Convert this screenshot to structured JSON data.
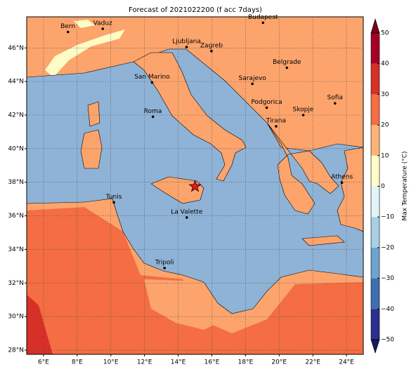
{
  "map": {
    "title": "Forecast of 2021022200 (f acc 7days)",
    "xlim": [
      5,
      25
    ],
    "ylim": [
      27.75,
      47.85
    ],
    "xticks": [
      {
        "value": 6,
        "label": "6°E"
      },
      {
        "value": 8,
        "label": "8°E"
      },
      {
        "value": 10,
        "label": "10°E"
      },
      {
        "value": 12,
        "label": "12°E"
      },
      {
        "value": 14,
        "label": "14°E"
      },
      {
        "value": 16,
        "label": "16°E"
      },
      {
        "value": 18,
        "label": "18°E"
      },
      {
        "value": 20,
        "label": "20°E"
      },
      {
        "value": 22,
        "label": "22°E"
      },
      {
        "value": 24,
        "label": "24°E"
      }
    ],
    "yticks": [
      {
        "value": 28,
        "label": "28°N"
      },
      {
        "value": 30,
        "label": "30°N"
      },
      {
        "value": 32,
        "label": "32°N"
      },
      {
        "value": 34,
        "label": "34°N"
      },
      {
        "value": 36,
        "label": "36°N"
      },
      {
        "value": 38,
        "label": "38°N"
      },
      {
        "value": 40,
        "label": "40°N"
      },
      {
        "value": 42,
        "label": "42°N"
      },
      {
        "value": 44,
        "label": "44°N"
      },
      {
        "value": 46,
        "label": "46°N"
      }
    ],
    "cities": [
      {
        "name": "Bern",
        "lon": 7.45,
        "lat": 46.95
      },
      {
        "name": "Vaduz",
        "lon": 9.52,
        "lat": 47.14
      },
      {
        "name": "Budapest",
        "lon": 19.04,
        "lat": 47.5
      },
      {
        "name": "Ljubljana",
        "lon": 14.5,
        "lat": 46.05
      },
      {
        "name": "Zagreb",
        "lon": 15.98,
        "lat": 45.81
      },
      {
        "name": "Belgrade",
        "lon": 20.46,
        "lat": 44.82
      },
      {
        "name": "San Marino",
        "lon": 12.45,
        "lat": 43.94
      },
      {
        "name": "Sarajevo",
        "lon": 18.41,
        "lat": 43.86
      },
      {
        "name": "Sofia",
        "lon": 23.32,
        "lat": 42.7
      },
      {
        "name": "Podgorica",
        "lon": 19.26,
        "lat": 42.44
      },
      {
        "name": "Skopje",
        "lon": 21.43,
        "lat": 42.0
      },
      {
        "name": "Roma",
        "lon": 12.5,
        "lat": 41.9
      },
      {
        "name": "Tirana",
        "lon": 19.82,
        "lat": 41.33
      },
      {
        "name": "Athens",
        "lon": 23.73,
        "lat": 37.98
      },
      {
        "name": "Tunis",
        "lon": 10.18,
        "lat": 36.8
      },
      {
        "name": "La Valette",
        "lon": 14.51,
        "lat": 35.9
      },
      {
        "name": "Tripoli",
        "lon": 13.19,
        "lat": 32.89
      }
    ],
    "marker": {
      "lon": 15.0,
      "lat": 37.75,
      "color": "#e41a1c"
    }
  },
  "colorbar": {
    "label": "Max Temperature (°C)",
    "clim": [
      -50,
      50
    ],
    "ticks": [
      {
        "value": -50,
        "label": "−50"
      },
      {
        "value": -40,
        "label": "−40"
      },
      {
        "value": -30,
        "label": "−30"
      },
      {
        "value": -20,
        "label": "−20"
      },
      {
        "value": -10,
        "label": "−10"
      },
      0,
      10,
      20,
      30,
      40,
      50
    ],
    "colors": [
      "#2b2f8f",
      "#3f6fb0",
      "#6fa3cf",
      "#a7d0e4",
      "#e3f3f7",
      "#fefbc6",
      "#fdb577",
      "#f46d43",
      "#d73027",
      "#a50026"
    ],
    "under_color": "#161a5e",
    "over_color": "#7a0020"
  }
}
